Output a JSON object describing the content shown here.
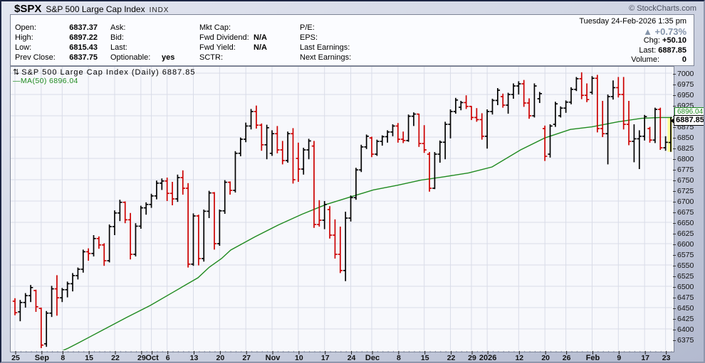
{
  "header": {
    "symbol": "$SPX",
    "name": "S&P 500 Large Cap Index",
    "exchange": "INDX",
    "copyright": "© StockCharts.com"
  },
  "quote": {
    "columns": [
      [
        {
          "label": "Open:",
          "value": "6837.37"
        },
        {
          "label": "High:",
          "value": "6897.22"
        },
        {
          "label": "Low:",
          "value": "6815.43"
        },
        {
          "label": "Prev Close:",
          "value": "6837.75"
        }
      ],
      [
        {
          "label": "Ask:",
          "value": ""
        },
        {
          "label": "Bid:",
          "value": ""
        },
        {
          "label": "Last:",
          "value": ""
        },
        {
          "label": "Optionable:",
          "value": "yes"
        }
      ],
      [
        {
          "label": "Mkt Cap:",
          "value": ""
        },
        {
          "label": "Fwd Dividend:",
          "value": "N/A"
        },
        {
          "label": "Fwd Yield:",
          "value": "N/A"
        },
        {
          "label": "SCTR:",
          "value": ""
        }
      ],
      [
        {
          "label": "P/E:",
          "value": ""
        },
        {
          "label": "EPS:",
          "value": ""
        },
        {
          "label": "Last Earnings:",
          "value": ""
        },
        {
          "label": "Next Earnings:",
          "value": ""
        }
      ]
    ],
    "datetime": "Tuesday 24-Feb-2026 1:35 pm",
    "pct_change": "+0.73%",
    "chg_label": "Chg:",
    "chg_value": "+50.10",
    "last_label": "Last:",
    "last_value": "6887.85",
    "volume_label": "Volume:",
    "volume_value": "0"
  },
  "chart_data": {
    "type": "ohlc-bar",
    "title": "S&P 500 Large Cap Index (Daily) 6887.85",
    "legend_ma": "MA(50) 6896.04",
    "last_price_label": "6887.85",
    "ma_axis_label": "6896.04",
    "y_axis": {
      "min_label": 6375,
      "max_label": 7000,
      "label_step": 25,
      "grid_step": 50,
      "grid_min": 6400,
      "grid_max": 7000
    },
    "x_labels": [
      {
        "i": 0,
        "t": "25",
        "month": false
      },
      {
        "i": 5,
        "t": "Sep",
        "month": true
      },
      {
        "i": 9,
        "t": "8",
        "month": false
      },
      {
        "i": 14,
        "t": "15",
        "month": false
      },
      {
        "i": 19,
        "t": "22",
        "month": false
      },
      {
        "i": 24,
        "t": "29",
        "month": false
      },
      {
        "i": 26,
        "t": "Oct",
        "month": true
      },
      {
        "i": 29,
        "t": "6",
        "month": false
      },
      {
        "i": 34,
        "t": "13",
        "month": false
      },
      {
        "i": 39,
        "t": "20",
        "month": false
      },
      {
        "i": 44,
        "t": "27",
        "month": false
      },
      {
        "i": 49,
        "t": "Nov",
        "month": true
      },
      {
        "i": 54,
        "t": "10",
        "month": false
      },
      {
        "i": 59,
        "t": "17",
        "month": false
      },
      {
        "i": 64,
        "t": "24",
        "month": false
      },
      {
        "i": 68,
        "t": "Dec",
        "month": true
      },
      {
        "i": 73,
        "t": "8",
        "month": false
      },
      {
        "i": 78,
        "t": "15",
        "month": false
      },
      {
        "i": 83,
        "t": "22",
        "month": false
      },
      {
        "i": 87,
        "t": "29",
        "month": false
      },
      {
        "i": 90,
        "t": "2026",
        "month": true
      },
      {
        "i": 96,
        "t": "12",
        "month": false
      },
      {
        "i": 101,
        "t": "20",
        "month": false
      },
      {
        "i": 105,
        "t": "26",
        "month": false
      },
      {
        "i": 110,
        "t": "Feb",
        "month": true
      },
      {
        "i": 115,
        "t": "9",
        "month": false
      },
      {
        "i": 120,
        "t": "17",
        "month": false
      },
      {
        "i": 124,
        "t": "23",
        "month": false
      }
    ],
    "bars": [
      [
        6465,
        6472,
        6432,
        6438,
        "r"
      ],
      [
        6440,
        6468,
        6418,
        6462,
        "k"
      ],
      [
        6462,
        6484,
        6450,
        6478,
        "k"
      ],
      [
        6478,
        6503,
        6463,
        6497,
        "k"
      ],
      [
        6490,
        6492,
        6440,
        6452,
        "r"
      ],
      [
        6448,
        6450,
        6355,
        6362,
        "r"
      ],
      [
        6365,
        6442,
        6358,
        6437,
        "k"
      ],
      [
        6437,
        6501,
        6428,
        6494,
        "k"
      ],
      [
        6494,
        6526,
        6431,
        6473,
        "r"
      ],
      [
        6473,
        6496,
        6463,
        6492,
        "k"
      ],
      [
        6492,
        6511,
        6474,
        6506,
        "k"
      ],
      [
        6506,
        6531,
        6488,
        6525,
        "k"
      ],
      [
        6525,
        6544,
        6516,
        6540,
        "k"
      ],
      [
        6540,
        6586,
        6532,
        6581,
        "k"
      ],
      [
        6581,
        6589,
        6560,
        6577,
        "r"
      ],
      [
        6577,
        6620,
        6570,
        6612,
        "k"
      ],
      [
        6612,
        6617,
        6588,
        6597,
        "r"
      ],
      [
        6597,
        6601,
        6548,
        6560,
        "r"
      ],
      [
        6560,
        6645,
        6556,
        6640,
        "k"
      ],
      [
        6640,
        6678,
        6620,
        6672,
        "k"
      ],
      [
        6672,
        6703,
        6653,
        6697,
        "k"
      ],
      [
        6697,
        6699,
        6648,
        6656,
        "r"
      ],
      [
        6656,
        6672,
        6563,
        6575,
        "r"
      ],
      [
        6575,
        6648,
        6570,
        6641,
        "k"
      ],
      [
        6641,
        6689,
        6635,
        6684,
        "k"
      ],
      [
        6684,
        6697,
        6668,
        6692,
        "k"
      ],
      [
        6692,
        6717,
        6684,
        6712,
        "k"
      ],
      [
        6712,
        6748,
        6704,
        6742,
        "k"
      ],
      [
        6742,
        6753,
        6726,
        6747,
        "k"
      ],
      [
        6747,
        6755,
        6700,
        6718,
        "r"
      ],
      [
        6718,
        6745,
        6690,
        6705,
        "r"
      ],
      [
        6705,
        6762,
        6698,
        6755,
        "k"
      ],
      [
        6755,
        6772,
        6715,
        6730,
        "r"
      ],
      [
        6730,
        6742,
        6544,
        6552,
        "r"
      ],
      [
        6552,
        6671,
        6548,
        6665,
        "k"
      ],
      [
        6665,
        6668,
        6549,
        6565,
        "r"
      ],
      [
        6565,
        6680,
        6558,
        6676,
        "k"
      ],
      [
        6676,
        6724,
        6660,
        6719,
        "k"
      ],
      [
        6719,
        6721,
        6586,
        6600,
        "r"
      ],
      [
        6600,
        6680,
        6595,
        6677,
        "k"
      ],
      [
        6677,
        6749,
        6670,
        6744,
        "k"
      ],
      [
        6744,
        6746,
        6715,
        6725,
        "r"
      ],
      [
        6725,
        6817,
        6720,
        6812,
        "k"
      ],
      [
        6812,
        6849,
        6805,
        6845,
        "k"
      ],
      [
        6845,
        6884,
        6838,
        6876,
        "k"
      ],
      [
        6876,
        6916,
        6868,
        6910,
        "k"
      ],
      [
        6910,
        6924,
        6870,
        6878,
        "r"
      ],
      [
        6878,
        6882,
        6818,
        6832,
        "r"
      ],
      [
        6832,
        6879,
        6798,
        6872,
        "k"
      ],
      [
        6812,
        6866,
        6806,
        6858,
        "k"
      ],
      [
        6858,
        6876,
        6812,
        6820,
        "r"
      ],
      [
        6820,
        6841,
        6786,
        6795,
        "r"
      ],
      [
        6795,
        6863,
        6790,
        6858,
        "k"
      ],
      [
        6858,
        6871,
        6741,
        6750,
        "r"
      ],
      [
        6800,
        6837,
        6745,
        6775,
        "r"
      ],
      [
        6775,
        6825,
        6762,
        6820,
        "k"
      ],
      [
        6820,
        6846,
        6798,
        6841,
        "k"
      ],
      [
        6829,
        6841,
        6637,
        6645,
        "r"
      ],
      [
        6645,
        6702,
        6640,
        6655,
        "r"
      ],
      [
        6655,
        6700,
        6634,
        6692,
        "k"
      ],
      [
        6680,
        6688,
        6612,
        6620,
        "r"
      ],
      [
        6620,
        6657,
        6565,
        6575,
        "r"
      ],
      [
        6575,
        6640,
        6531,
        6537,
        "r"
      ],
      [
        6537,
        6675,
        6512,
        6660,
        "k"
      ],
      [
        6660,
        6713,
        6652,
        6708,
        "k"
      ],
      [
        6708,
        6778,
        6703,
        6773,
        "k"
      ],
      [
        6773,
        6832,
        6768,
        6827,
        "k"
      ],
      [
        6827,
        6856,
        6822,
        6852,
        "k"
      ],
      [
        6848,
        6851,
        6803,
        6810,
        "r"
      ],
      [
        6810,
        6844,
        6806,
        6840,
        "k"
      ],
      [
        6840,
        6854,
        6830,
        6851,
        "k"
      ],
      [
        6851,
        6866,
        6837,
        6862,
        "k"
      ],
      [
        6862,
        6880,
        6852,
        6876,
        "k"
      ],
      [
        6876,
        6883,
        6837,
        6845,
        "r"
      ],
      [
        6845,
        6863,
        6836,
        6842,
        "r"
      ],
      [
        6842,
        6903,
        6839,
        6899,
        "k"
      ],
      [
        6899,
        6908,
        6876,
        6904,
        "k"
      ],
      [
        6904,
        6905,
        6827,
        6835,
        "r"
      ],
      [
        6835,
        6878,
        6813,
        6820,
        "r"
      ],
      [
        6810,
        6815,
        6722,
        6730,
        "r"
      ],
      [
        6730,
        6815,
        6728,
        6810,
        "k"
      ],
      [
        6810,
        6842,
        6790,
        6838,
        "k"
      ],
      [
        6838,
        6886,
        6798,
        6880,
        "k"
      ],
      [
        6880,
        6915,
        6847,
        6910,
        "k"
      ],
      [
        6910,
        6942,
        6905,
        6937,
        "k"
      ],
      [
        6920,
        6935,
        6913,
        6931,
        "k"
      ],
      [
        6931,
        6948,
        6916,
        6922,
        "r"
      ],
      [
        6922,
        6923,
        6890,
        6896,
        "r"
      ],
      [
        6896,
        6918,
        6886,
        6891,
        "r"
      ],
      [
        6891,
        6906,
        6844,
        6852,
        "r"
      ],
      [
        6852,
        6915,
        6823,
        6910,
        "k"
      ],
      [
        6910,
        6940,
        6903,
        6936,
        "k"
      ],
      [
        6936,
        6965,
        6925,
        6960,
        "k"
      ],
      [
        6945,
        6952,
        6919,
        6925,
        "r"
      ],
      [
        6925,
        6954,
        6905,
        6950,
        "k"
      ],
      [
        6950,
        6976,
        6940,
        6970,
        "k"
      ],
      [
        6970,
        6981,
        6950,
        6975,
        "k"
      ],
      [
        6975,
        6984,
        6921,
        6930,
        "r"
      ],
      [
        6930,
        6941,
        6893,
        6900,
        "r"
      ],
      [
        6900,
        6976,
        6896,
        6970,
        "k"
      ],
      [
        6940,
        6956,
        6930,
        6952,
        "k"
      ],
      [
        6870,
        6877,
        6794,
        6805,
        "r"
      ],
      [
        6810,
        6880,
        6802,
        6876,
        "k"
      ],
      [
        6880,
        6933,
        6874,
        6928,
        "k"
      ],
      [
        6900,
        6922,
        6896,
        6918,
        "k"
      ],
      [
        6918,
        6936,
        6907,
        6932,
        "k"
      ],
      [
        6932,
        6967,
        6927,
        6962,
        "k"
      ],
      [
        6962,
        6991,
        6958,
        6987,
        "k"
      ],
      [
        6987,
        7002,
        6939,
        6948,
        "r"
      ],
      [
        6948,
        6976,
        6932,
        6938,
        "r"
      ],
      [
        6955,
        6993,
        6950,
        6988,
        "k"
      ],
      [
        6988,
        6996,
        6861,
        6870,
        "r"
      ],
      [
        6870,
        6935,
        6850,
        6858,
        "r"
      ],
      [
        6858,
        6950,
        6786,
        6945,
        "k"
      ],
      [
        6945,
        6983,
        6938,
        6966,
        "k"
      ],
      [
        6966,
        6991,
        6943,
        6950,
        "r"
      ],
      [
        6950,
        6991,
        6868,
        6880,
        "r"
      ],
      [
        6880,
        6935,
        6831,
        6840,
        "r"
      ],
      [
        6840,
        6880,
        6791,
        6846,
        "k"
      ],
      [
        6846,
        6866,
        6775,
        6852,
        "k"
      ],
      [
        6852,
        6902,
        6842,
        6898,
        "k"
      ],
      [
        6870,
        6874,
        6837,
        6843,
        "r"
      ],
      [
        6843,
        6919,
        6836,
        6915,
        "k"
      ],
      [
        6915,
        6919,
        6820,
        6825,
        "r"
      ],
      [
        6825,
        6852,
        6818,
        6837.75,
        "k"
      ],
      [
        6837.37,
        6897.22,
        6815.43,
        6887.85,
        "k"
      ]
    ],
    "highlight_last_bar": true,
    "ma50": [
      [
        75,
        6340
      ],
      [
        95,
        6355
      ],
      [
        110,
        6368
      ],
      [
        143,
        6397
      ],
      [
        177,
        6427
      ],
      [
        210,
        6455
      ],
      [
        243,
        6487
      ],
      [
        277,
        6520
      ],
      [
        293,
        6545
      ],
      [
        310,
        6565
      ],
      [
        323,
        6585
      ],
      [
        357,
        6616
      ],
      [
        390,
        6644
      ],
      [
        423,
        6669
      ],
      [
        457,
        6692
      ],
      [
        490,
        6709
      ],
      [
        523,
        6726
      ],
      [
        557,
        6737
      ],
      [
        590,
        6749
      ],
      [
        623,
        6757
      ],
      [
        657,
        6766
      ],
      [
        690,
        6780
      ],
      [
        730,
        6820
      ],
      [
        764,
        6848
      ],
      [
        800,
        6868
      ],
      [
        830,
        6874
      ],
      [
        867,
        6886
      ],
      [
        900,
        6894
      ],
      [
        925,
        6896
      ],
      [
        944,
        6896
      ]
    ],
    "colors": {
      "up": "#000000",
      "down": "#cc0000",
      "ma": "#1f8a1f",
      "grid": "#d9dce8",
      "plot_bg": "#f7f8fc",
      "highlight": "#ffff99",
      "pct_change": "#8494aa"
    }
  }
}
